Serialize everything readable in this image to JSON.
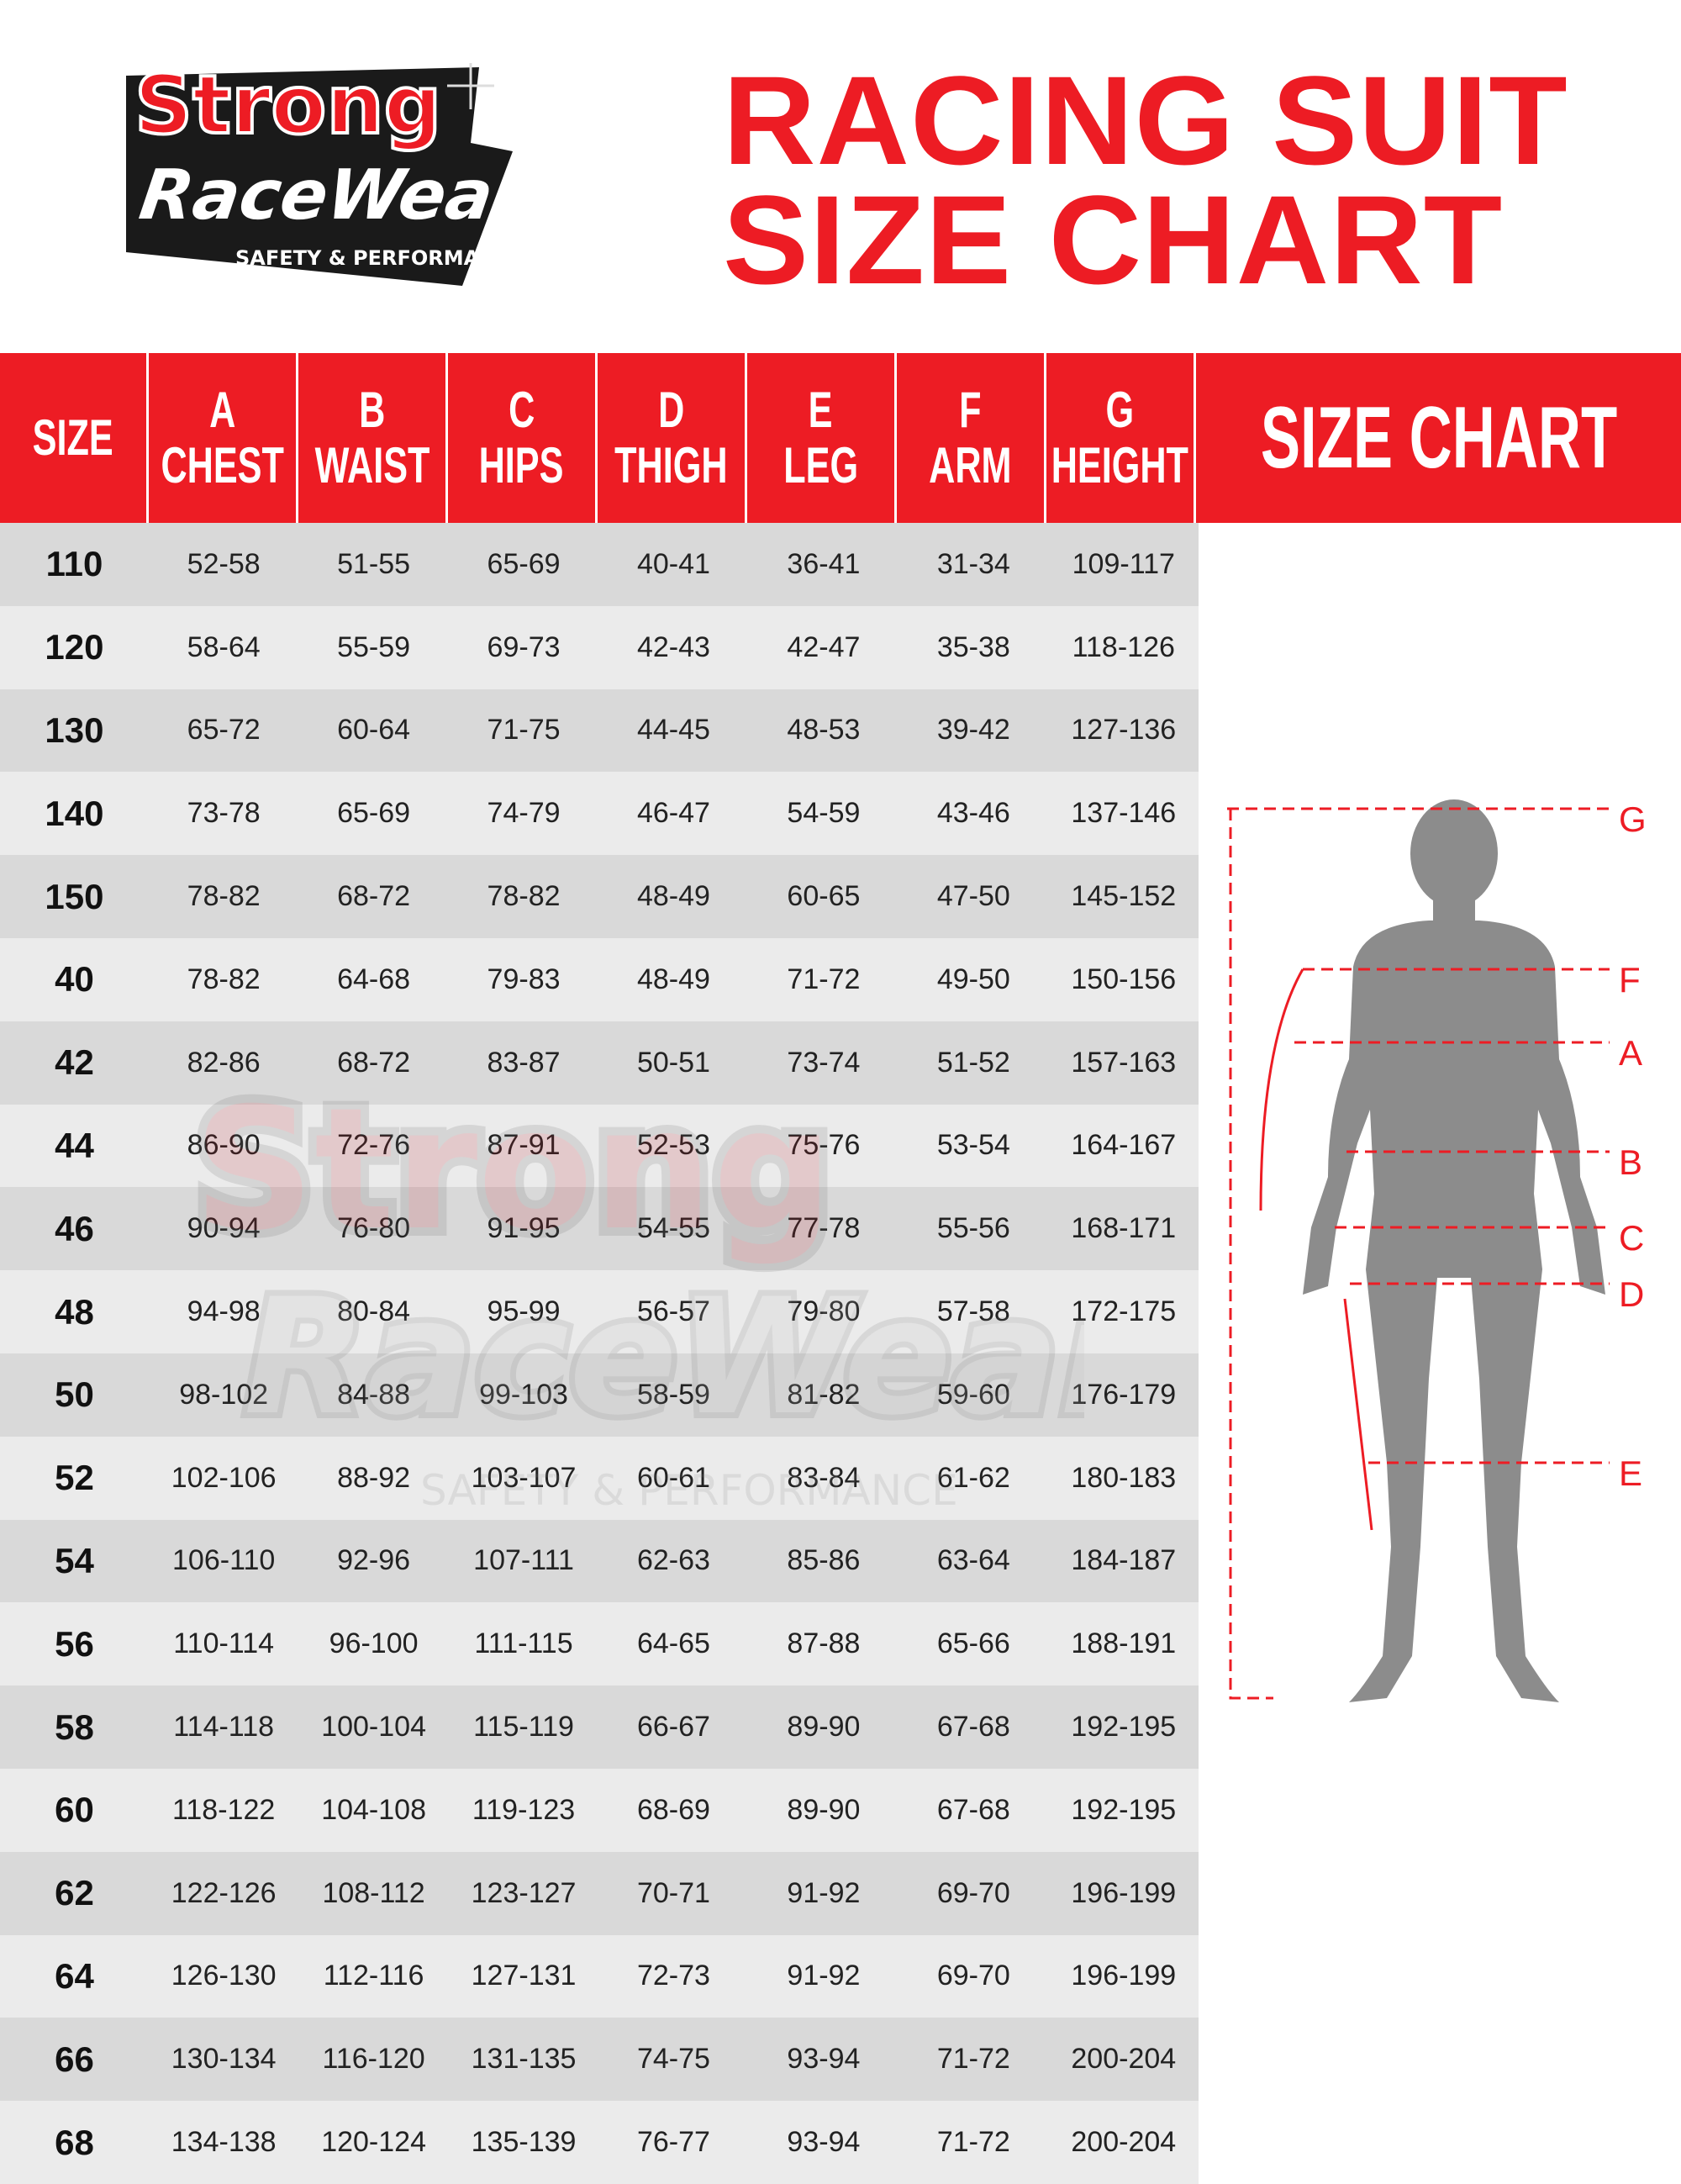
{
  "logo": {
    "line1": "Strong",
    "line2": "RaceWear",
    "tagline": "SAFETY & PERFORMANCE"
  },
  "title": {
    "line1": "RACING SUIT",
    "line2": "SIZE CHART"
  },
  "header": {
    "size": "SIZE",
    "columns": [
      {
        "letter": "A",
        "name": "CHEST"
      },
      {
        "letter": "B",
        "name": "WAIST"
      },
      {
        "letter": "C",
        "name": "HIPS"
      },
      {
        "letter": "D",
        "name": "THIGH"
      },
      {
        "letter": "E",
        "name": "LEG"
      },
      {
        "letter": "F",
        "name": "ARM"
      },
      {
        "letter": "G",
        "name": "HEIGHT"
      }
    ],
    "panel_title": "SIZE CHART"
  },
  "rows": [
    [
      "110",
      "52-58",
      "51-55",
      "65-69",
      "40-41",
      "36-41",
      "31-34",
      "109-117"
    ],
    [
      "120",
      "58-64",
      "55-59",
      "69-73",
      "42-43",
      "42-47",
      "35-38",
      "118-126"
    ],
    [
      "130",
      "65-72",
      "60-64",
      "71-75",
      "44-45",
      "48-53",
      "39-42",
      "127-136"
    ],
    [
      "140",
      "73-78",
      "65-69",
      "74-79",
      "46-47",
      "54-59",
      "43-46",
      "137-146"
    ],
    [
      "150",
      "78-82",
      "68-72",
      "78-82",
      "48-49",
      "60-65",
      "47-50",
      "145-152"
    ],
    [
      "40",
      "78-82",
      "64-68",
      "79-83",
      "48-49",
      "71-72",
      "49-50",
      "150-156"
    ],
    [
      "42",
      "82-86",
      "68-72",
      "83-87",
      "50-51",
      "73-74",
      "51-52",
      "157-163"
    ],
    [
      "44",
      "86-90",
      "72-76",
      "87-91",
      "52-53",
      "75-76",
      "53-54",
      "164-167"
    ],
    [
      "46",
      "90-94",
      "76-80",
      "91-95",
      "54-55",
      "77-78",
      "55-56",
      "168-171"
    ],
    [
      "48",
      "94-98",
      "80-84",
      "95-99",
      "56-57",
      "79-80",
      "57-58",
      "172-175"
    ],
    [
      "50",
      "98-102",
      "84-88",
      "99-103",
      "58-59",
      "81-82",
      "59-60",
      "176-179"
    ],
    [
      "52",
      "102-106",
      "88-92",
      "103-107",
      "60-61",
      "83-84",
      "61-62",
      "180-183"
    ],
    [
      "54",
      "106-110",
      "92-96",
      "107-111",
      "62-63",
      "85-86",
      "63-64",
      "184-187"
    ],
    [
      "56",
      "110-114",
      "96-100",
      "111-115",
      "64-65",
      "87-88",
      "65-66",
      "188-191"
    ],
    [
      "58",
      "114-118",
      "100-104",
      "115-119",
      "66-67",
      "89-90",
      "67-68",
      "192-195"
    ],
    [
      "60",
      "118-122",
      "104-108",
      "119-123",
      "68-69",
      "89-90",
      "67-68",
      "192-195"
    ],
    [
      "62",
      "122-126",
      "108-112",
      "123-127",
      "70-71",
      "91-92",
      "69-70",
      "196-199"
    ],
    [
      "64",
      "126-130",
      "112-116",
      "127-131",
      "72-73",
      "91-92",
      "69-70",
      "196-199"
    ],
    [
      "66",
      "130-134",
      "116-120",
      "131-135",
      "74-75",
      "93-94",
      "71-72",
      "200-204"
    ],
    [
      "68",
      "134-138",
      "120-124",
      "135-139",
      "76-77",
      "93-94",
      "71-72",
      "200-204"
    ]
  ],
  "figure": {
    "labels": [
      "G",
      "F",
      "A",
      "B",
      "C",
      "D",
      "E"
    ]
  },
  "colors": {
    "brand_red": "#ED1C24",
    "row_dark": "#d9d9d9",
    "row_light": "#ebebeb",
    "silhouette": "#8c8c8c"
  }
}
